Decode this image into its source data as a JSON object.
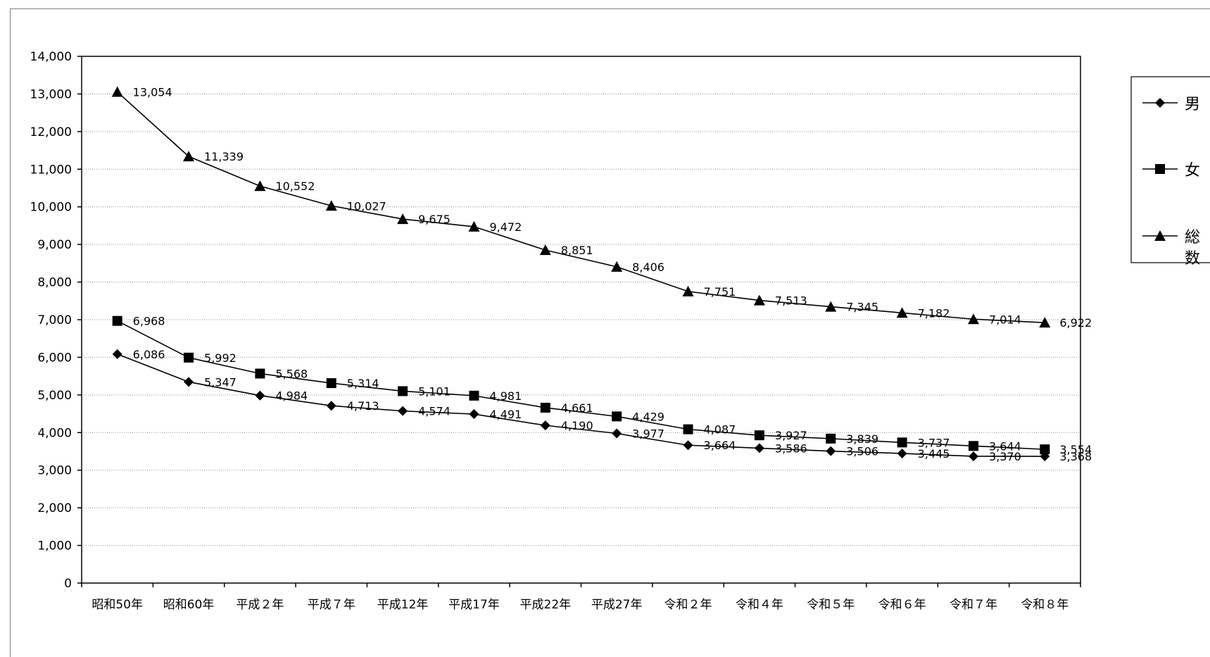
{
  "chart_data": {
    "type": "line",
    "title": "",
    "xlabel": "",
    "ylabel": "",
    "categories": [
      "昭和50年",
      "昭和60年",
      "平成２年",
      "平成７年",
      "平成12年",
      "平成17年",
      "平成22年",
      "平成27年",
      "令和２年",
      "令和４年",
      "令和５年",
      "令和６年",
      "令和７年",
      "令和８年"
    ],
    "ylim": [
      0,
      14000
    ],
    "yticks": [
      0,
      1000,
      2000,
      3000,
      4000,
      5000,
      6000,
      7000,
      8000,
      9000,
      10000,
      11000,
      12000,
      13000,
      14000
    ],
    "ytick_labels": [
      "0",
      "1,000",
      "2,000",
      "3,000",
      "4,000",
      "5,000",
      "6,000",
      "7,000",
      "8,000",
      "9,000",
      "10,000",
      "11,000",
      "12,000",
      "13,000",
      "14,000"
    ],
    "grid": true,
    "legend_position": "right",
    "series": [
      {
        "name": "男",
        "marker": "diamond",
        "color": "#000000",
        "values": [
          6086,
          5347,
          4984,
          4713,
          4574,
          4491,
          4190,
          3977,
          3664,
          3586,
          3506,
          3445,
          3370,
          3368
        ],
        "labels": [
          "6,086",
          "5,347",
          "4,984",
          "4,713",
          "4,574",
          "4,491",
          "4,190",
          "3,977",
          "3,664",
          "3,586",
          "3,506",
          "3,445",
          "3,370",
          "3,368"
        ]
      },
      {
        "name": "女",
        "marker": "square",
        "color": "#000000",
        "values": [
          6968,
          5992,
          5568,
          5314,
          5101,
          4981,
          4661,
          4429,
          4087,
          3927,
          3839,
          3737,
          3644,
          3554
        ],
        "labels": [
          "6,968",
          "5,992",
          "5,568",
          "5,314",
          "5,101",
          "4,981",
          "4,661",
          "4,429",
          "4,087",
          "3,927",
          "3,839",
          "3,737",
          "3,644",
          "3,554"
        ]
      },
      {
        "name": "総数",
        "marker": "triangle",
        "color": "#000000",
        "values": [
          13054,
          11339,
          10552,
          10027,
          9675,
          9472,
          8851,
          8406,
          7751,
          7513,
          7345,
          7182,
          7014,
          6922
        ],
        "labels": [
          "13,054",
          "11,339",
          "10,552",
          "10,027",
          "9,675",
          "9,472",
          "8,851",
          "8,406",
          "7,751",
          "7,513",
          "7,345",
          "7,182",
          "7,014",
          "6,922"
        ]
      }
    ]
  }
}
